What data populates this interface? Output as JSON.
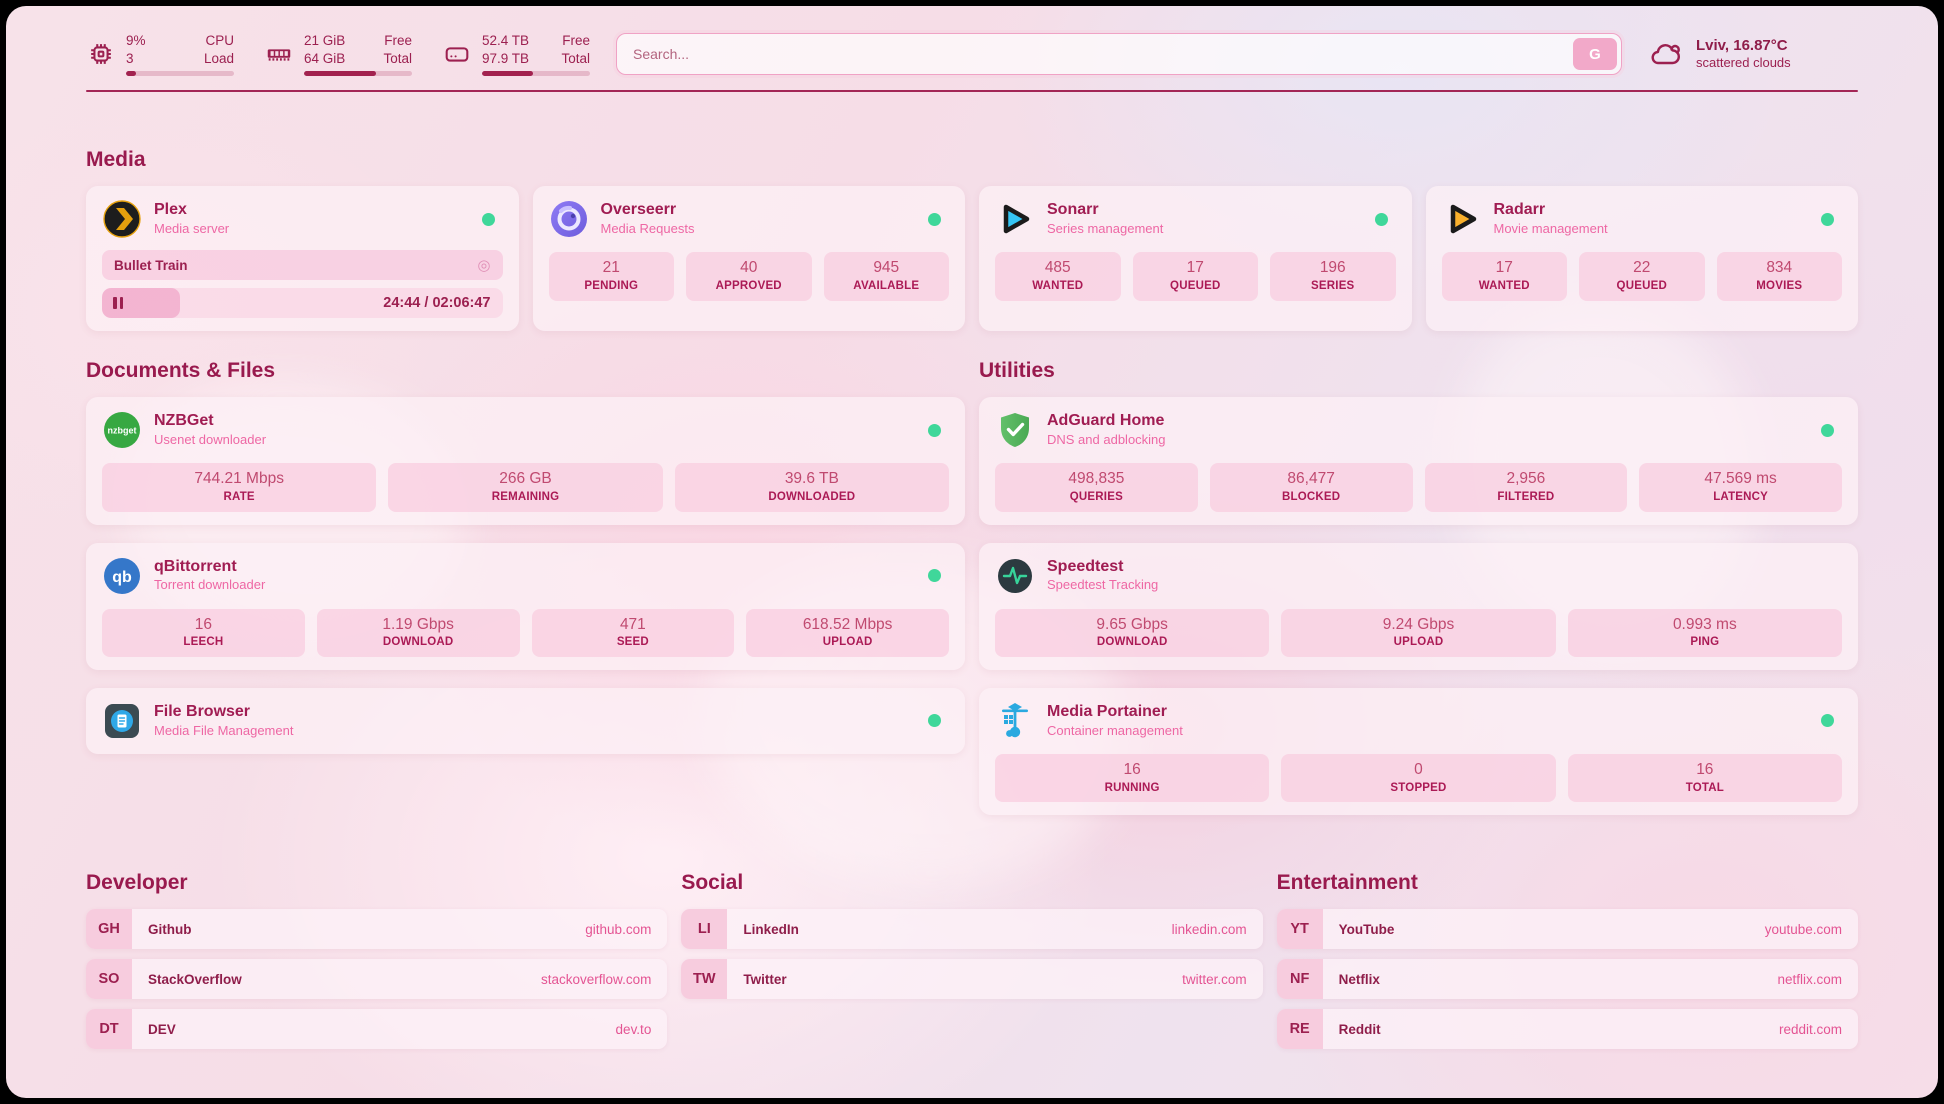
{
  "header": {
    "system_stats": [
      {
        "icon": "cpu-icon",
        "value_top": "9%",
        "value_bottom": "3",
        "label_top": "CPU",
        "label_bottom": "Load",
        "progress_pct": 9
      },
      {
        "icon": "ram-icon",
        "value_top": "21 GiB",
        "value_bottom": "64 GiB",
        "label_top": "Free",
        "label_bottom": "Total",
        "progress_pct": 67
      },
      {
        "icon": "disk-icon",
        "value_top": "52.4 TB",
        "value_bottom": "97.9 TB",
        "label_top": "Free",
        "label_bottom": "Total",
        "progress_pct": 47
      }
    ],
    "search": {
      "placeholder": "Search...",
      "button_label": "G"
    },
    "weather": {
      "icon": "cloud-icon",
      "location": "Lviv, 16.87°C",
      "condition": "scattered clouds"
    }
  },
  "icons": {
    "now_playing_glyph": "◎"
  },
  "colors": {
    "accent": "#9c2050",
    "status_online": "#3fd79a",
    "subtitle_pink": "#ee67a4",
    "stat_value": "#c04a70",
    "stat_label": "#ab1a55"
  },
  "sections": {
    "media": {
      "title": "Media",
      "plex": {
        "title": "Plex",
        "subtitle": "Media server",
        "status": "online",
        "now_playing": "Bullet Train",
        "time": "24:44 / 02:06:47",
        "progress_pct": 19.5
      },
      "overseerr": {
        "title": "Overseerr",
        "subtitle": "Media Requests",
        "status": "online",
        "stats": [
          {
            "value": "21",
            "label": "PENDING"
          },
          {
            "value": "40",
            "label": "APPROVED"
          },
          {
            "value": "945",
            "label": "AVAILABLE"
          }
        ]
      },
      "sonarr": {
        "title": "Sonarr",
        "subtitle": "Series management",
        "status": "online",
        "stats": [
          {
            "value": "485",
            "label": "WANTED"
          },
          {
            "value": "17",
            "label": "QUEUED"
          },
          {
            "value": "196",
            "label": "SERIES"
          }
        ]
      },
      "radarr": {
        "title": "Radarr",
        "subtitle": "Movie management",
        "status": "online",
        "stats": [
          {
            "value": "17",
            "label": "WANTED"
          },
          {
            "value": "22",
            "label": "QUEUED"
          },
          {
            "value": "834",
            "label": "MOVIES"
          }
        ]
      }
    },
    "documents": {
      "title": "Documents & Files",
      "nzbget": {
        "title": "NZBGet",
        "subtitle": "Usenet downloader",
        "status": "online",
        "stats": [
          {
            "value": "744.21 Mbps",
            "label": "RATE"
          },
          {
            "value": "266 GB",
            "label": "REMAINING"
          },
          {
            "value": "39.6 TB",
            "label": "DOWNLOADED"
          }
        ]
      },
      "qbittorrent": {
        "title": "qBittorrent",
        "subtitle": "Torrent downloader",
        "status": "online",
        "stats": [
          {
            "value": "16",
            "label": "LEECH"
          },
          {
            "value": "1.19 Gbps",
            "label": "DOWNLOAD"
          },
          {
            "value": "471",
            "label": "SEED"
          },
          {
            "value": "618.52 Mbps",
            "label": "UPLOAD"
          }
        ]
      },
      "filebrowser": {
        "title": "File Browser",
        "subtitle": "Media File Management",
        "status": "online"
      }
    },
    "utilities": {
      "title": "Utilities",
      "adguard": {
        "title": "AdGuard Home",
        "subtitle": "DNS and adblocking",
        "status": "online",
        "stats": [
          {
            "value": "498,835",
            "label": "QUERIES"
          },
          {
            "value": "86,477",
            "label": "BLOCKED"
          },
          {
            "value": "2,956",
            "label": "FILTERED"
          },
          {
            "value": "47.569 ms",
            "label": "LATENCY"
          }
        ]
      },
      "speedtest": {
        "title": "Speedtest",
        "subtitle": "Speedtest Tracking",
        "stats": [
          {
            "value": "9.65 Gbps",
            "label": "DOWNLOAD"
          },
          {
            "value": "9.24 Gbps",
            "label": "UPLOAD"
          },
          {
            "value": "0.993 ms",
            "label": "PING"
          }
        ]
      },
      "portainer": {
        "title": "Media Portainer",
        "subtitle": "Container management",
        "status": "online",
        "stats": [
          {
            "value": "16",
            "label": "RUNNING"
          },
          {
            "value": "0",
            "label": "STOPPED"
          },
          {
            "value": "16",
            "label": "TOTAL"
          }
        ]
      }
    },
    "developer": {
      "title": "Developer",
      "links": [
        {
          "badge": "GH",
          "name": "Github",
          "url": "github.com"
        },
        {
          "badge": "SO",
          "name": "StackOverflow",
          "url": "stackoverflow.com"
        },
        {
          "badge": "DT",
          "name": "DEV",
          "url": "dev.to"
        }
      ]
    },
    "social": {
      "title": "Social",
      "links": [
        {
          "badge": "LI",
          "name": "LinkedIn",
          "url": "linkedin.com"
        },
        {
          "badge": "TW",
          "name": "Twitter",
          "url": "twitter.com"
        }
      ]
    },
    "entertainment": {
      "title": "Entertainment",
      "links": [
        {
          "badge": "YT",
          "name": "YouTube",
          "url": "youtube.com"
        },
        {
          "badge": "NF",
          "name": "Netflix",
          "url": "netflix.com"
        },
        {
          "badge": "RE",
          "name": "Reddit",
          "url": "reddit.com"
        }
      ]
    }
  }
}
